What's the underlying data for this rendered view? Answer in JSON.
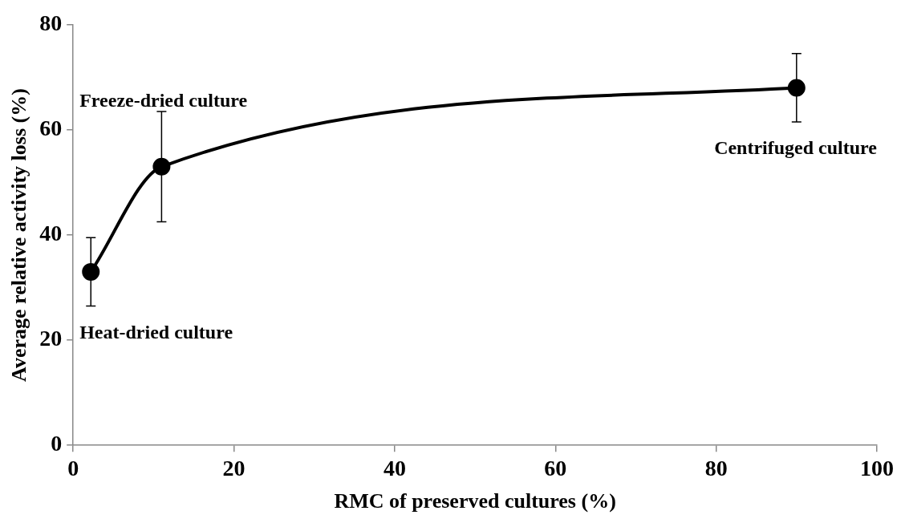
{
  "chart_data": {
    "type": "line",
    "xlabel": "RMC of preserved cultures (%)",
    "ylabel": "Average relative activity loss (%)",
    "x": [
      2.2,
      11,
      90
    ],
    "series": [
      {
        "color": "#000000",
        "values": [
          33,
          53,
          68
        ],
        "errors": [
          6.5,
          10.5,
          6.5
        ]
      }
    ],
    "xlim": [
      0,
      100
    ],
    "xticks": [
      0,
      20,
      40,
      60,
      80,
      100
    ],
    "ylim": [
      0,
      80
    ],
    "yticks": [
      0,
      20,
      40,
      60,
      80
    ],
    "grid": false,
    "legend": false,
    "marker": "circle",
    "line_style": "solid",
    "annotations": [
      {
        "text": "Heat-dried culture",
        "x": 2.2,
        "y": 33
      },
      {
        "text": "Freeze-dried culture",
        "x": 11,
        "y": 53
      },
      {
        "text": "Centrifuged culture",
        "x": 90,
        "y": 68
      }
    ]
  }
}
